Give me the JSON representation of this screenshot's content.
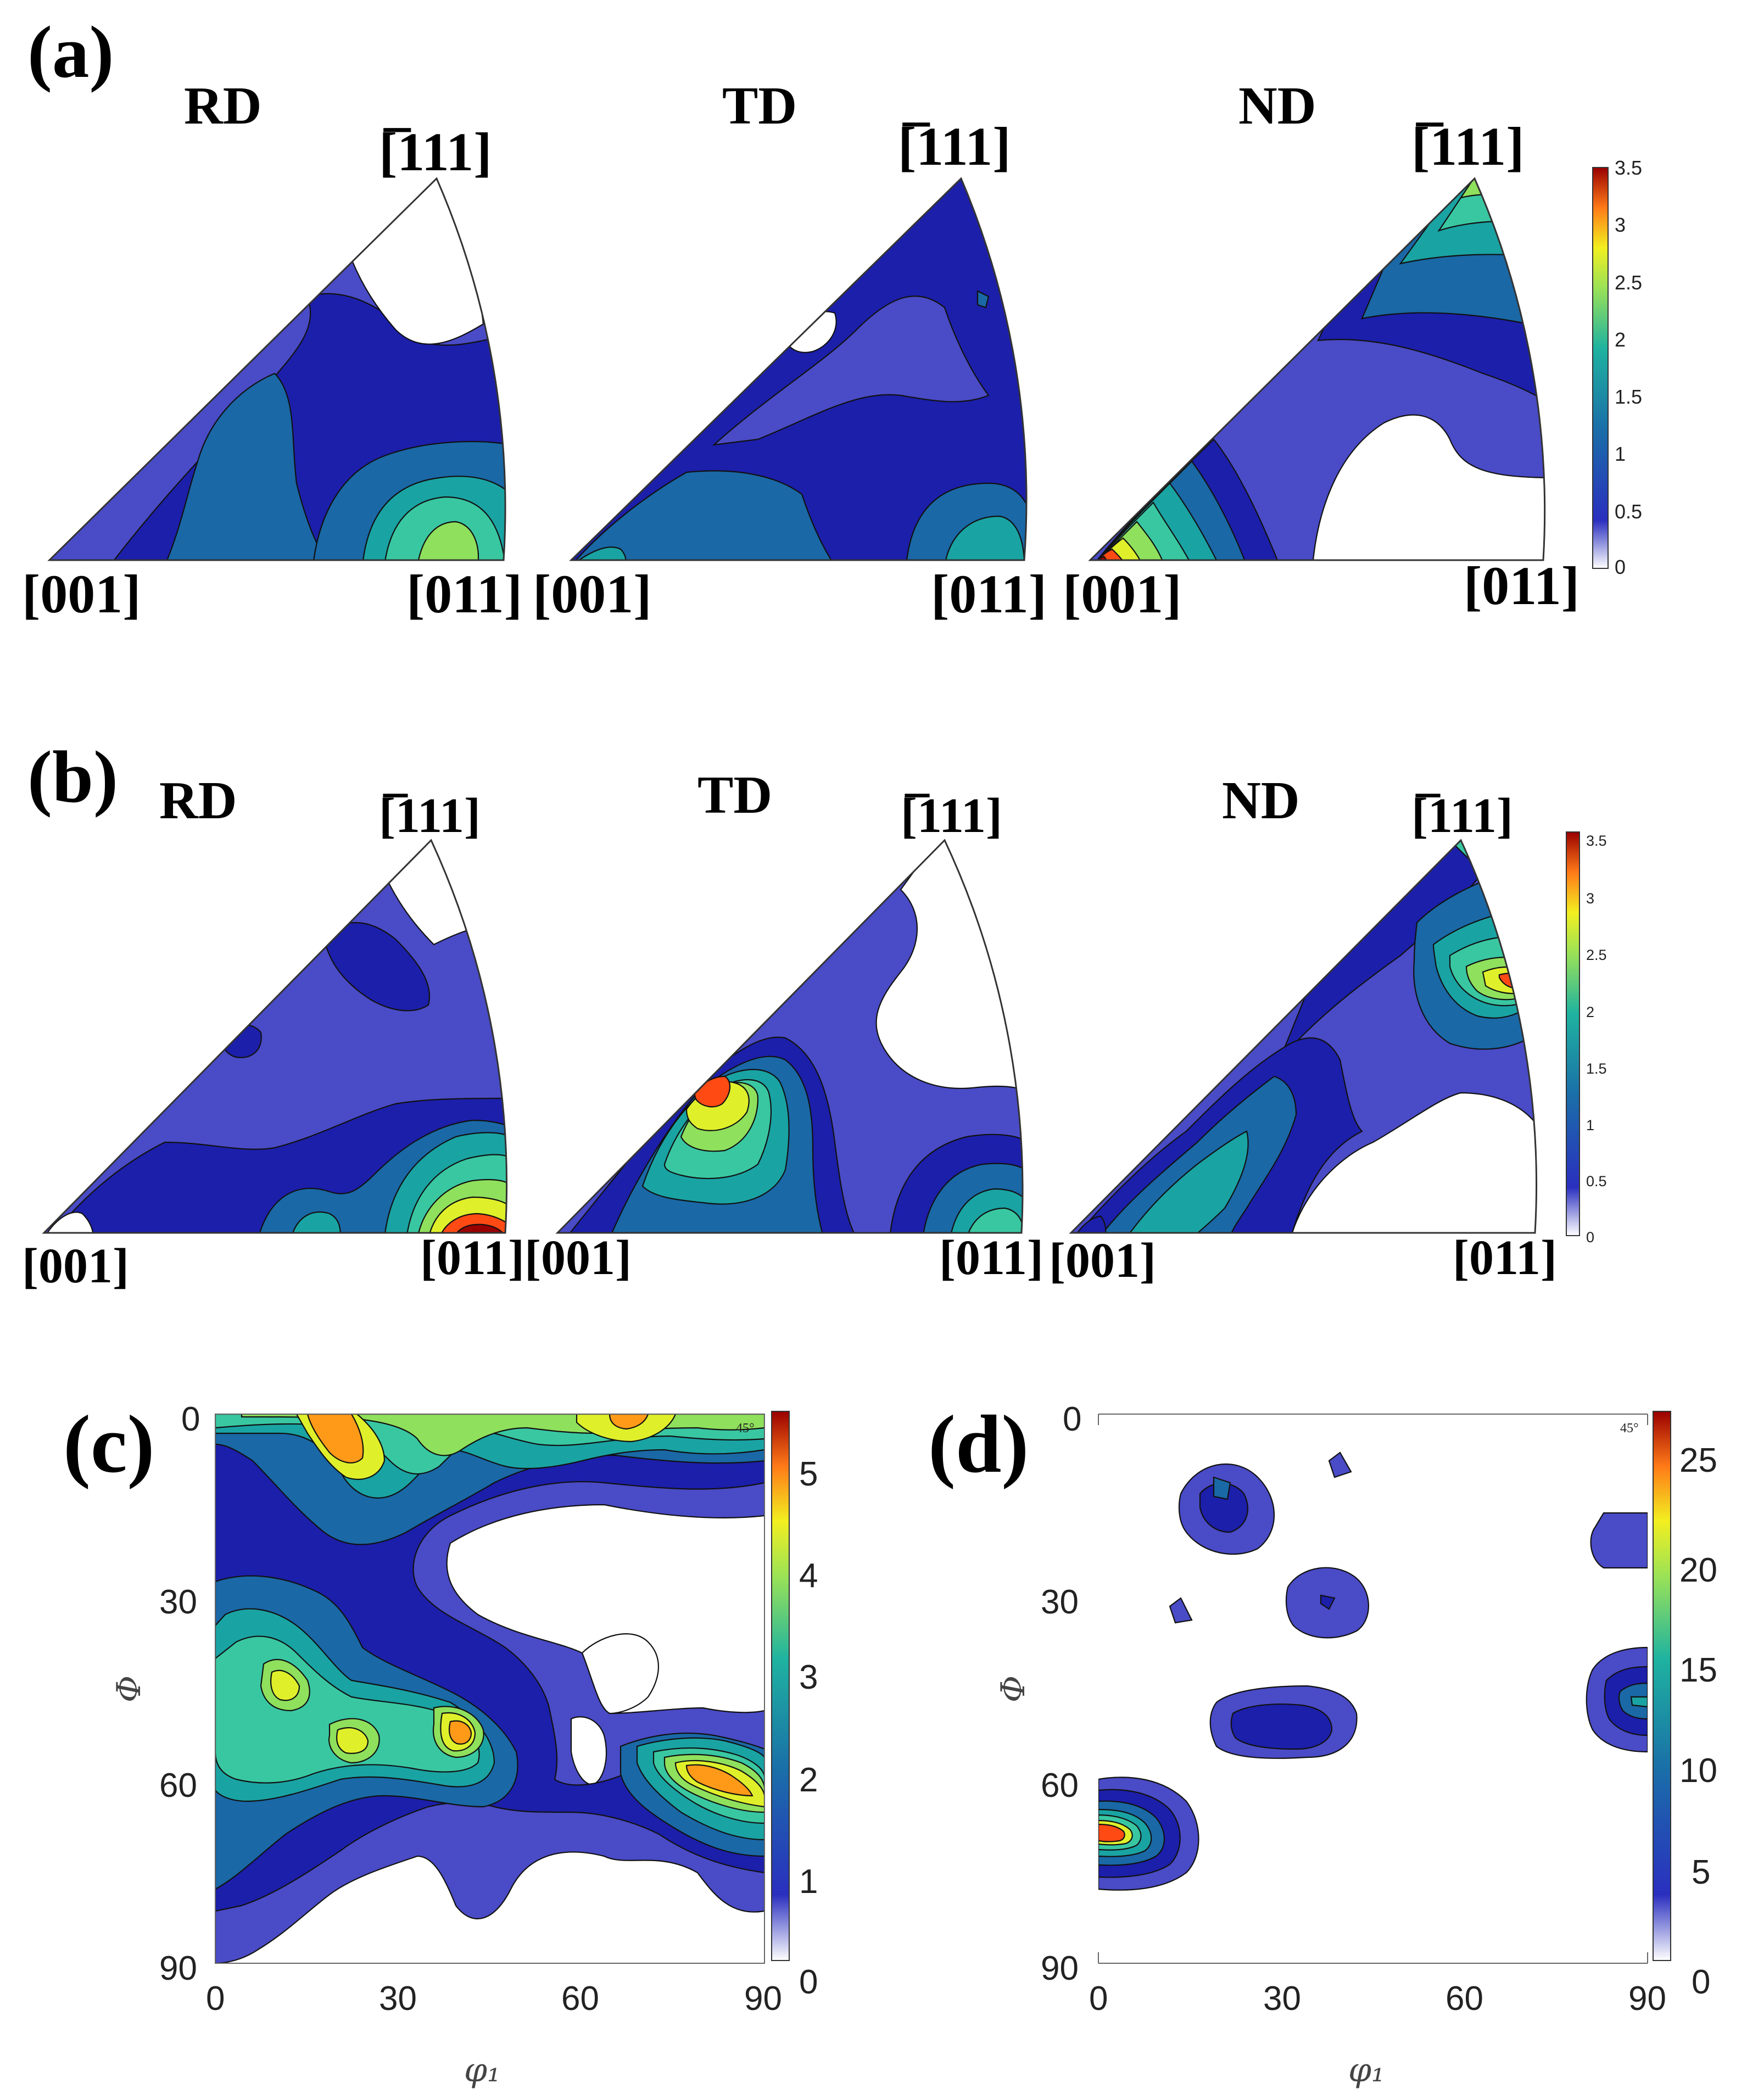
{
  "panels": {
    "a": {
      "label": "(a)",
      "directions": [
        "RD",
        "TD",
        "ND"
      ]
    },
    "b": {
      "label": "(b)",
      "directions": [
        "RD",
        "TD",
        "ND"
      ]
    },
    "c": {
      "label": "(c)"
    },
    "d": {
      "label": "(d)"
    }
  },
  "ipf_vertices": {
    "v001": "[001]",
    "v011": "[011]",
    "v111": "[̅111]"
  },
  "colorbar_ipf": {
    "ticks": [
      "3.5",
      "3",
      "2.5",
      "2",
      "1.5",
      "1",
      "0.5",
      "0"
    ]
  },
  "odf_c": {
    "x_ticks": [
      "0",
      "30",
      "60",
      "90"
    ],
    "y_ticks": [
      "0",
      "30",
      "60",
      "90"
    ],
    "xlabel": "φ₁",
    "ylabel": "Φ",
    "section": "45°",
    "colorbar_ticks": [
      "5",
      "4",
      "3",
      "2",
      "1",
      "0"
    ]
  },
  "odf_d": {
    "x_ticks": [
      "0",
      "30",
      "60",
      "90"
    ],
    "y_ticks": [
      "0",
      "30",
      "60",
      "90"
    ],
    "xlabel": "φ₁",
    "ylabel": "Φ",
    "section": "45°",
    "colorbar_ticks": [
      "25",
      "20",
      "15",
      "10",
      "5",
      "0"
    ]
  },
  "colors": {
    "levels": [
      "#ffffff",
      "#4a4bc6",
      "#1c1faa",
      "#1a68a6",
      "#1aa3a3",
      "#39c7a2",
      "#8fe05c",
      "#dff02a",
      "#ff9a18",
      "#ff4a14",
      "#990000"
    ]
  }
}
